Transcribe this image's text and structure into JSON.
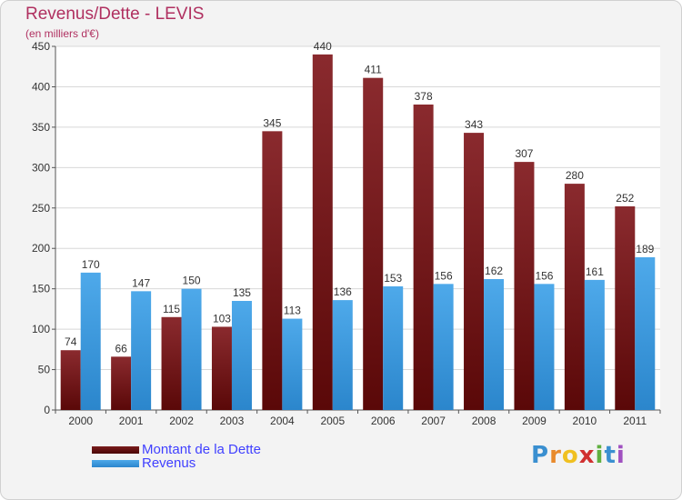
{
  "title": "Revenus/Dette - LEVIS",
  "subtitle": "(en milliers d'€)",
  "colors": {
    "dette": "#6b1515",
    "revenus": "#3d9ce0",
    "title": "#b03060",
    "legend_text": "#4040ff"
  },
  "logo": "Proxiti",
  "chart_data": {
    "type": "bar",
    "title": "Revenus/Dette - LEVIS",
    "subtitle": "(en milliers d'€)",
    "categories": [
      "2000",
      "2001",
      "2002",
      "2003",
      "2004",
      "2005",
      "2006",
      "2007",
      "2008",
      "2009",
      "2010",
      "2011"
    ],
    "series": [
      {
        "name": "Montant de la Dette",
        "values": [
          74,
          66,
          115,
          103,
          345,
          440,
          411,
          378,
          343,
          307,
          280,
          252
        ]
      },
      {
        "name": "Revenus",
        "values": [
          170,
          147,
          150,
          135,
          113,
          136,
          153,
          156,
          162,
          156,
          161,
          189
        ]
      }
    ],
    "yticks": [
      "0",
      "50",
      "100",
      "150",
      "200",
      "250",
      "300",
      "350",
      "400",
      "450"
    ],
    "ylim": [
      0,
      450
    ],
    "grid": true,
    "legend_position": "bottom-left"
  }
}
